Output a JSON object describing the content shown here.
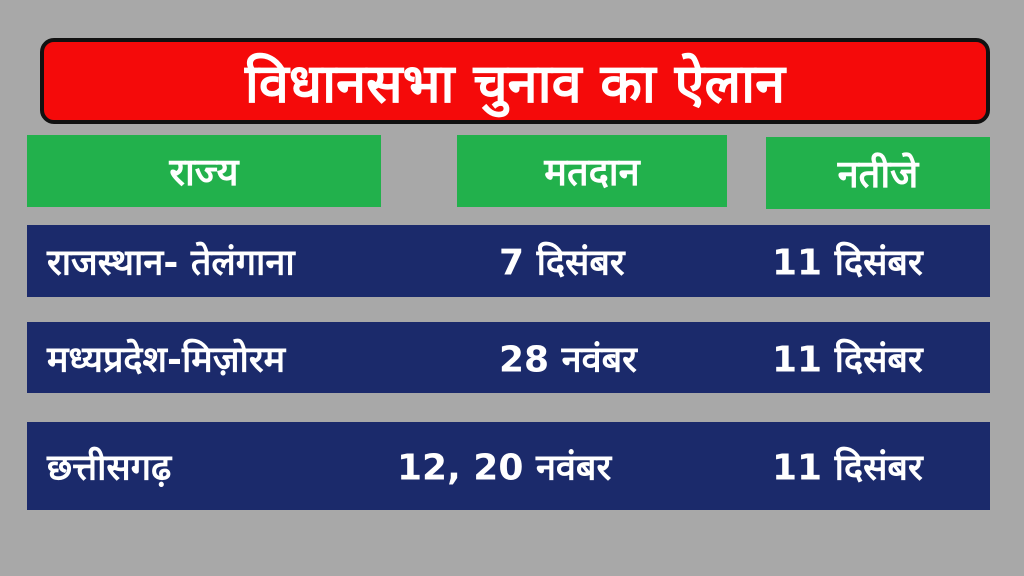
{
  "title": "विधानसभा चुनाव का ऐलान",
  "headers": {
    "state": "राज्य",
    "voting": "मतदान",
    "results": "नतीजे"
  },
  "rows": [
    {
      "state": "राजस्थान- तेलंगाना",
      "voting": "7 दिसंबर",
      "results": "11 दिसंबर"
    },
    {
      "state": "मध्यप्रदेश-मिज़ोरम",
      "voting": "28 नवंबर",
      "results": "11 दिसंबर"
    },
    {
      "state": "छत्तीसगढ़",
      "voting": "12, 20 नवंबर",
      "results": "11 दिसंबर"
    }
  ],
  "colors": {
    "background": "#a8a8a8",
    "title_bg": "#f50a0a",
    "header_bg": "#22b14c",
    "row_bg": "#1b2a6b"
  }
}
